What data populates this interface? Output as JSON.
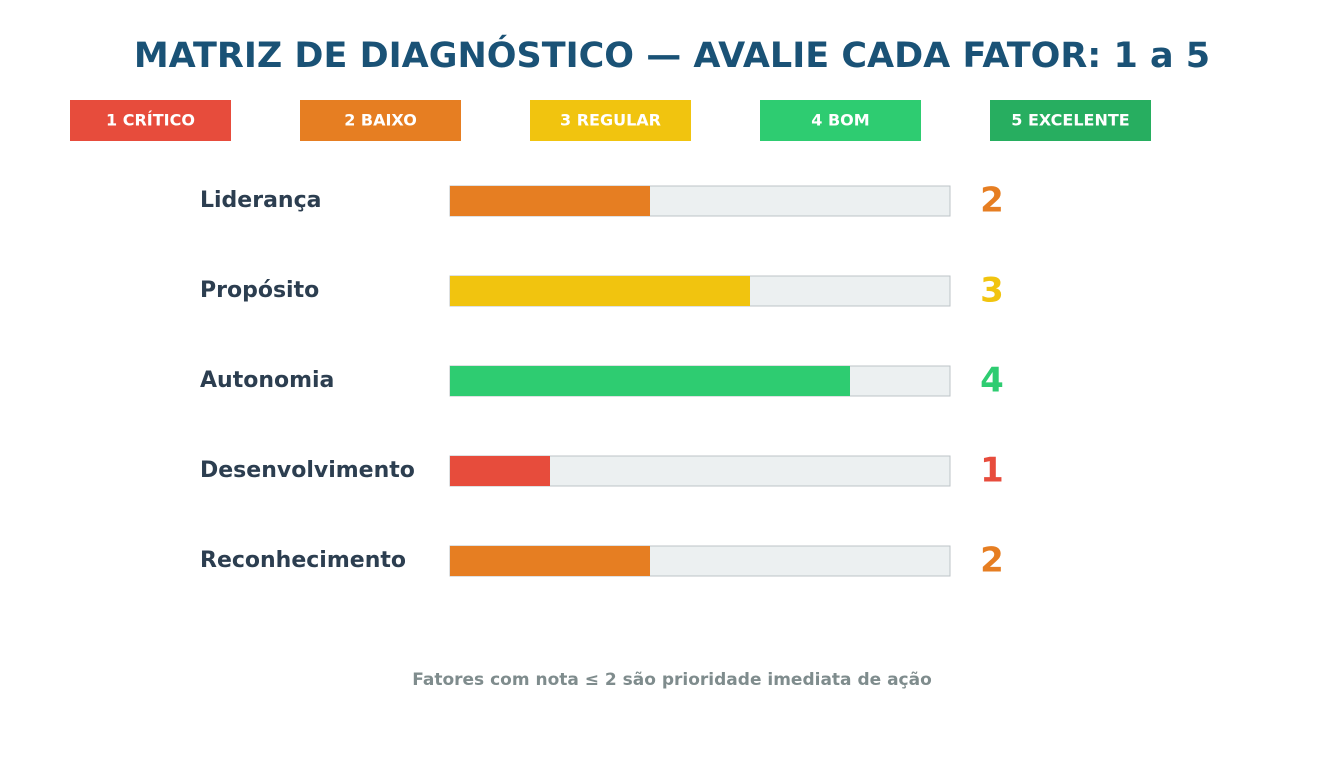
{
  "chart_data": {
    "type": "bar",
    "orientation": "horizontal",
    "title": "MATRIZ DE DIAGNÓSTICO — AVALIE CADA FATOR: 1 a 5",
    "legend": [
      {
        "label": "1 CRÍTICO",
        "color": "#e74c3c"
      },
      {
        "label": "2 BAIXO",
        "color": "#e67e22"
      },
      {
        "label": "3 REGULAR",
        "color": "#f1c40f"
      },
      {
        "label": "4 BOM",
        "color": "#2ecc71"
      },
      {
        "label": "5 EXCELENTE",
        "color": "#27ae60"
      }
    ],
    "categories": [
      "Liderança",
      "Propósito",
      "Autonomia",
      "Desenvolvimento",
      "Reconhecimento"
    ],
    "values": [
      2,
      3,
      4,
      1,
      2
    ],
    "colors": [
      "#e67e22",
      "#f1c40f",
      "#2ecc71",
      "#e74c3c",
      "#e67e22"
    ],
    "xlim": [
      0,
      5
    ],
    "footnote": "Fatores com nota ≤ 2 são prioridade imediata de ação"
  }
}
